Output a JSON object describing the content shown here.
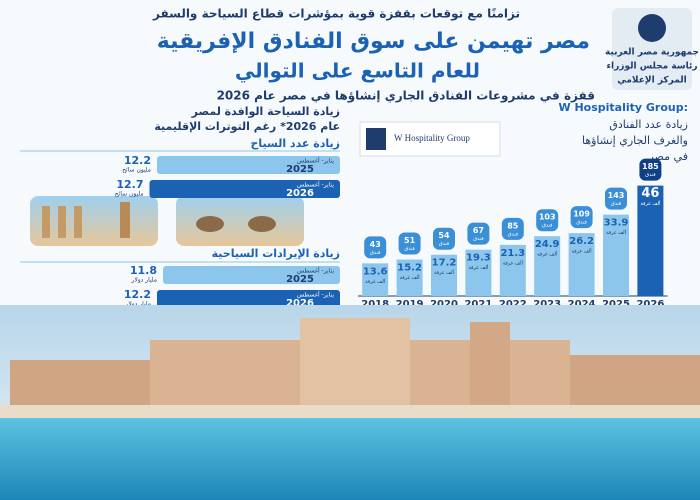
{
  "header": {
    "kicker": "تزامنًا مع توقعات بقفزة قوية بمؤشرات قطاع السياحة والسفر",
    "title": "مصر تهيمن على سوق الفنادق الإفريقية",
    "subtitle": "للعام التاسع على التوالي",
    "tagline": "قفزة في مشروعات الفنادق الجاري إنشاؤها في مصر عام 2026"
  },
  "logo": {
    "lines": [
      "جمهورية مصر العربية",
      "رئاسة مجلس الوزراء",
      "المركز الإعلامي"
    ]
  },
  "source": {
    "name": "W Hospitality Group:",
    "logo_text": "W Hospitality Group",
    "lines": [
      "زيادة عدد الفنادق",
      "والغرف الجاري إنشاؤها",
      "في مصر"
    ]
  },
  "tourism": {
    "heading_lines": [
      "زيادة السياحة الوافدة لمصر",
      "عام 2026* رغم التوترات الإقليمية"
    ],
    "arrivals": {
      "title": "زيادة عدد السياح",
      "rows": [
        {
          "period": "يناير- أغسطس",
          "year": "2025",
          "value": 12.2,
          "unit": "مليون سائح"
        },
        {
          "period": "يناير- أغسطس",
          "year": "2026",
          "value": 12.7,
          "unit": "مليون سائح"
        }
      ]
    },
    "revenue": {
      "title": "زيادة الإيرادات السياحية",
      "rows": [
        {
          "period": "يناير- أغسطس",
          "year": "2025",
          "value": 11.8,
          "unit": "مليار دولار"
        },
        {
          "period": "يناير- أغسطس",
          "year": "2026",
          "value": 12.2,
          "unit": "مليار دولار"
        }
      ]
    }
  },
  "chart_data": {
    "type": "bar",
    "categories": [
      "2018",
      "2019",
      "2020",
      "2021",
      "2022",
      "2023",
      "2024",
      "2025",
      "2026"
    ],
    "series": [
      {
        "name": "ألف غرفة",
        "color": "#8cc6ec",
        "highlight": "#1b62b5",
        "values": [
          13.6,
          15.2,
          17.2,
          19.3,
          21.3,
          24.9,
          26.2,
          33.9,
          46
        ]
      },
      {
        "name": "فندق",
        "color": "#3b8fd6",
        "highlight": "#0f3f86",
        "values": [
          43,
          51,
          54,
          67,
          85,
          103,
          109,
          143,
          185
        ]
      }
    ]
  }
}
